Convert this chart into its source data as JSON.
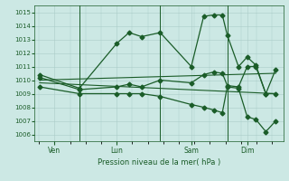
{
  "background_color": "#cce8e4",
  "grid_color": "#aaccc8",
  "line_color": "#1a5c28",
  "title": "Pression niveau de la mer( hPa )",
  "ylim": [
    1005.5,
    1015.5
  ],
  "yticks": [
    1006,
    1007,
    1008,
    1009,
    1010,
    1011,
    1012,
    1013,
    1014,
    1015
  ],
  "day_labels": [
    "Ven",
    "Lun",
    "Sam",
    "Dim"
  ],
  "day_positions": [
    0.08,
    0.33,
    0.63,
    0.855
  ],
  "vline_positions": [
    0.18,
    0.505,
    0.775
  ],
  "series": [
    {
      "x": [
        0.02,
        0.18,
        0.33,
        0.38,
        0.43,
        0.505,
        0.63,
        0.68,
        0.72,
        0.755,
        0.775,
        0.82,
        0.855,
        0.89,
        0.93,
        0.97
      ],
      "y": [
        1010.4,
        1009.4,
        1012.7,
        1013.5,
        1013.2,
        1013.5,
        1011.0,
        1014.7,
        1014.8,
        1014.8,
        1013.3,
        1011.0,
        1011.7,
        1011.1,
        1009.0,
        1010.8
      ],
      "marker": true
    },
    {
      "x": [
        0.02,
        0.18,
        0.33,
        0.38,
        0.43,
        0.505,
        0.63,
        0.68,
        0.72,
        0.755,
        0.775,
        0.82,
        0.855,
        0.89,
        0.93,
        0.97
      ],
      "y": [
        1010.2,
        1009.3,
        1009.5,
        1009.7,
        1009.5,
        1010.0,
        1009.8,
        1010.4,
        1010.6,
        1010.5,
        1009.6,
        1009.5,
        1011.0,
        1011.0,
        1009.0,
        1009.0
      ],
      "marker": true
    },
    {
      "x": [
        0.02,
        0.97
      ],
      "y": [
        1010.0,
        1010.5
      ],
      "marker": false
    },
    {
      "x": [
        0.02,
        0.97
      ],
      "y": [
        1009.8,
        1009.0
      ],
      "marker": false
    },
    {
      "x": [
        0.02,
        0.18,
        0.33,
        0.38,
        0.43,
        0.505,
        0.63,
        0.68,
        0.72,
        0.755,
        0.775,
        0.82,
        0.855,
        0.89,
        0.93,
        0.97
      ],
      "y": [
        1009.5,
        1009.0,
        1009.0,
        1009.0,
        1009.0,
        1008.8,
        1008.2,
        1008.0,
        1007.8,
        1007.6,
        1009.5,
        1009.4,
        1007.3,
        1007.1,
        1006.2,
        1007.0
      ],
      "marker": true
    }
  ]
}
